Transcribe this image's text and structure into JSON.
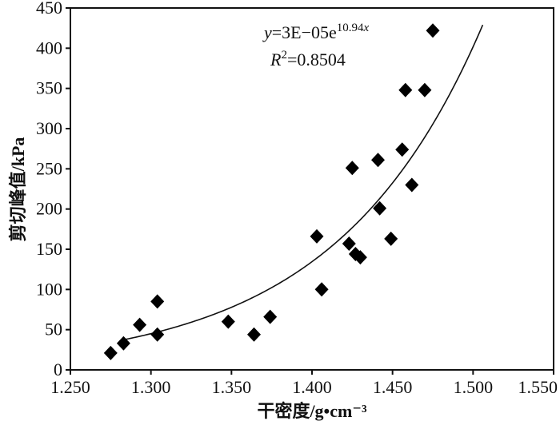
{
  "chart_data": {
    "type": "scatter",
    "xlabel": "干密度/g•cm⁻³",
    "ylabel": "剪切峰值/kPa",
    "xlim": [
      1.25,
      1.55
    ],
    "ylim": [
      0,
      450
    ],
    "x_ticks": [
      "1.250",
      "1.300",
      "1.350",
      "1.400",
      "1.450",
      "1.500",
      "1.550"
    ],
    "y_ticks": [
      "0",
      "50",
      "100",
      "150",
      "200",
      "250",
      "300",
      "350",
      "400",
      "450"
    ],
    "grid": false,
    "legend": "none",
    "marker_color": "#000000",
    "series": [
      {
        "x": [
          1.275,
          1.283,
          1.293,
          1.304,
          1.304,
          1.348,
          1.364,
          1.374,
          1.403,
          1.406,
          1.423,
          1.425,
          1.427,
          1.43,
          1.441,
          1.442,
          1.449,
          1.456,
          1.458,
          1.462,
          1.47,
          1.475
        ],
        "y": [
          21,
          33,
          56,
          85,
          44,
          60,
          44,
          66,
          166,
          100,
          157,
          251,
          144,
          140,
          261,
          201,
          163,
          274,
          348,
          230,
          348,
          422
        ]
      }
    ],
    "fit": {
      "a": 3e-05,
      "b": 10.94,
      "x_range": [
        1.283,
        1.506
      ],
      "equation": {
        "lhs": "y",
        "coef": "=3E−05e",
        "exponent": "10.94",
        "exp_var": "x"
      },
      "r_squared": {
        "symbol": "R",
        "power": "2",
        "value": "=0.8504"
      }
    }
  }
}
